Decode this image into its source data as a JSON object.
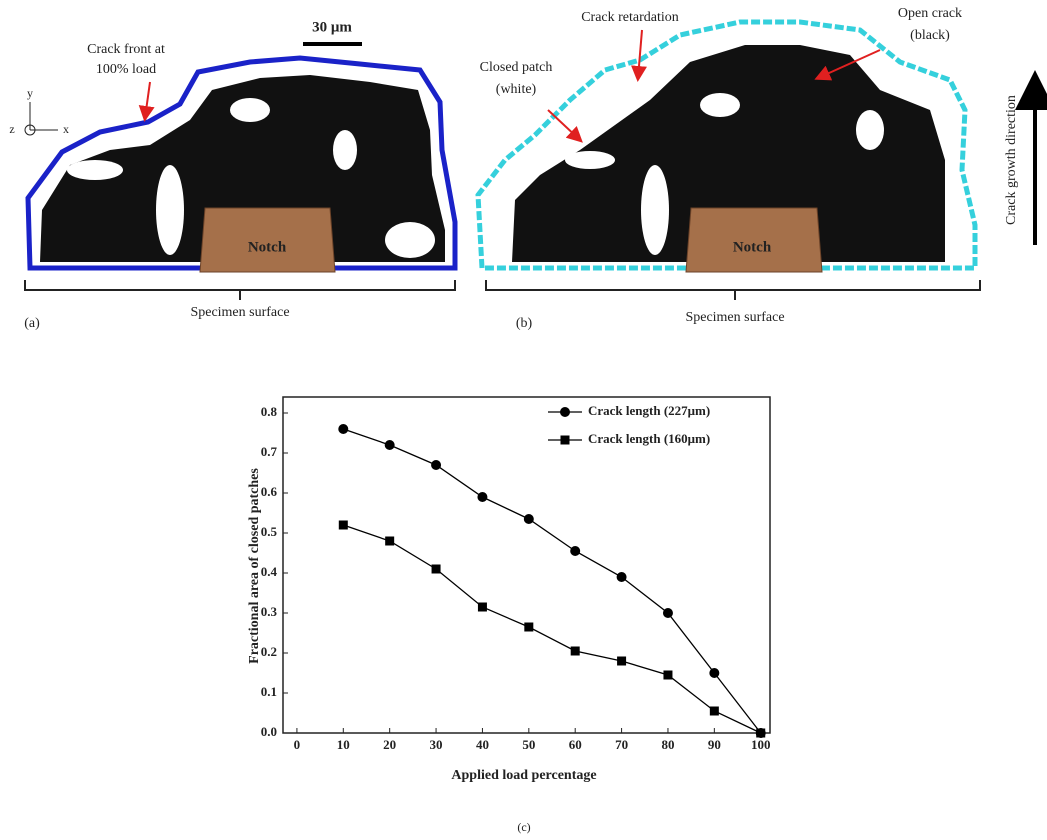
{
  "panels": {
    "a": {
      "label": "(a)",
      "scale_bar": "30 μm",
      "crack_front": [
        "Crack front at",
        "100% load"
      ],
      "axes": [
        "y",
        "z",
        "x"
      ],
      "notch": "Notch",
      "surface": "Specimen surface"
    },
    "b": {
      "label": "(b)",
      "crack_retardation": "Crack retardation",
      "open_crack": [
        "Open crack",
        "(black)"
      ],
      "closed_patch": [
        "Closed patch",
        "(white)"
      ],
      "notch": "Notch",
      "surface": "Specimen surface"
    },
    "direction": "Crack growth direction"
  },
  "chart_data": {
    "type": "line",
    "caption": "(c)",
    "x_label": "Applied load percentage",
    "y_label": "Fractional area of closed patches",
    "x": [
      10,
      20,
      30,
      40,
      50,
      60,
      70,
      80,
      90,
      100
    ],
    "series": [
      {
        "name": "Crack length (227μm)",
        "color": "#000000",
        "marker": "circle",
        "values": [
          0.76,
          0.72,
          0.67,
          0.59,
          0.535,
          0.455,
          0.39,
          0.3,
          0.15,
          0.0
        ]
      },
      {
        "name": "Crack length (160μm)",
        "color": "#000000",
        "marker": "square",
        "values": [
          0.52,
          0.48,
          0.41,
          0.315,
          0.265,
          0.205,
          0.18,
          0.145,
          0.055,
          0.0
        ]
      }
    ],
    "xlim": [
      -3,
      102
    ],
    "xticks": [
      0,
      10,
      20,
      30,
      40,
      50,
      60,
      70,
      80,
      90,
      100
    ],
    "ylim": [
      0,
      0.84
    ],
    "yticks": [
      {
        "value": 0,
        "label": "0.0"
      },
      0.1,
      0.2,
      0.3,
      0.4,
      0.5,
      0.6,
      0.7,
      0.8
    ],
    "legend": "upper right"
  }
}
